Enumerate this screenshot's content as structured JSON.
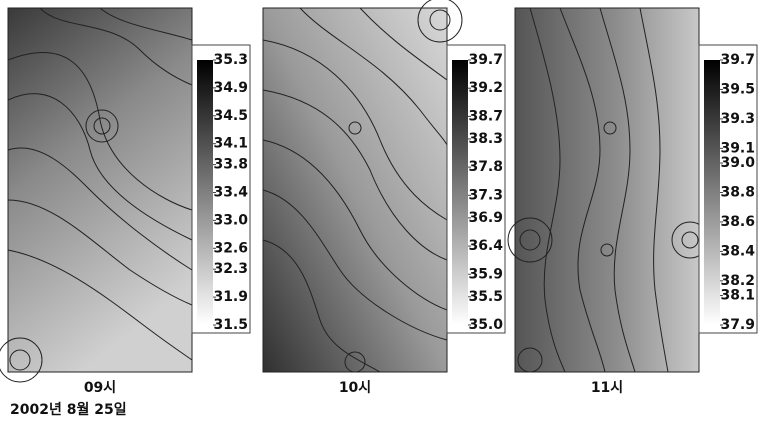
{
  "chart_data": [
    {
      "type": "contour",
      "title": "09시",
      "clim": [
        31.5,
        35.3
      ],
      "cticks": [
        35.3,
        34.9,
        34.5,
        34.1,
        33.8,
        33.4,
        {
          "value": 33,
          "label": "33.0"
        },
        32.6,
        32.3,
        31.9,
        31.5
      ]
    },
    {
      "type": "contour",
      "title": "10시",
      "clim": [
        35,
        39.7
      ],
      "cticks": [
        39.7,
        39.2,
        38.7,
        38.3,
        37.8,
        37.3,
        36.9,
        36.4,
        35.9,
        35.5,
        {
          "value": 35,
          "label": "35.0"
        }
      ]
    },
    {
      "type": "contour",
      "title": "11시",
      "clim": [
        37.9,
        39.7
      ],
      "cticks": [
        39.7,
        39.5,
        39.3,
        39.1,
        {
          "value": 39,
          "label": "39.0"
        },
        38.8,
        38.6,
        38.4,
        38.2,
        38.1,
        37.9
      ]
    }
  ],
  "caption": "2002년 8월 25일"
}
